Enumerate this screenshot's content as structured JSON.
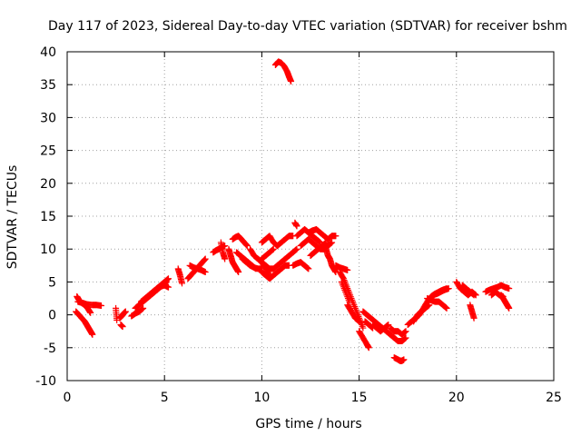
{
  "chart_data": {
    "type": "scatter",
    "title": "Day 117 of 2023, Sidereal Day-to-day VTEC variation (SDTVAR) for receiver bshm",
    "xlabel": "GPS time / hours",
    "ylabel": "SDTVAR / TECUs",
    "xlim": [
      0,
      25
    ],
    "ylim": [
      -10,
      40
    ],
    "xticks": [
      0,
      5,
      10,
      15,
      20,
      25
    ],
    "yticks": [
      -10,
      -5,
      0,
      5,
      10,
      15,
      20,
      25,
      30,
      35,
      40
    ],
    "grid": true,
    "marker": "+",
    "color": "#ff0000",
    "segments": [
      {
        "x": [
          0.45,
          0.6,
          0.75,
          0.9,
          1.0,
          1.1,
          1.2,
          1.3
        ],
        "y": [
          0.5,
          0.0,
          -0.5,
          -1.0,
          -1.5,
          -2.0,
          -2.5,
          -3.0
        ]
      },
      {
        "x": [
          0.5,
          0.6,
          0.75,
          0.9,
          1.05,
          1.2
        ],
        "y": [
          2.8,
          2.3,
          1.8,
          1.5,
          1.0,
          0.3
        ]
      },
      {
        "x": [
          0.55,
          0.8,
          1.0,
          1.3,
          1.5,
          1.75
        ],
        "y": [
          2.0,
          1.8,
          1.6,
          1.5,
          1.5,
          1.4
        ]
      },
      {
        "x": [
          2.5,
          2.55
        ],
        "y": [
          1.0,
          -0.8
        ]
      },
      {
        "x": [
          2.7,
          2.8,
          2.9,
          3.0
        ],
        "y": [
          -0.5,
          -0.2,
          0.2,
          0.5
        ]
      },
      {
        "x": [
          2.75,
          2.85
        ],
        "y": [
          -1.5,
          -1.8
        ]
      },
      {
        "x": [
          3.3,
          3.5,
          3.7,
          3.9
        ],
        "y": [
          -0.2,
          0.2,
          0.5,
          1.0
        ]
      },
      {
        "x": [
          3.5,
          3.7,
          3.9,
          4.1,
          4.3,
          4.5,
          4.7,
          4.9,
          5.1
        ],
        "y": [
          1.0,
          1.5,
          2.0,
          2.5,
          3.0,
          3.5,
          4.0,
          4.5,
          5.0
        ]
      },
      {
        "x": [
          3.8,
          4.0,
          4.2,
          4.4,
          4.6,
          4.8,
          5.0,
          5.2
        ],
        "y": [
          2.0,
          2.5,
          3.0,
          3.5,
          4.0,
          4.5,
          5.0,
          5.5
        ]
      },
      {
        "x": [
          4.2,
          4.4,
          4.6,
          4.8,
          5.0,
          5.2
        ],
        "y": [
          2.8,
          3.3,
          3.8,
          4.3,
          4.5,
          4.2
        ]
      },
      {
        "x": [
          5.7,
          5.8,
          5.9
        ],
        "y": [
          7.0,
          6.0,
          4.8
        ]
      },
      {
        "x": [
          6.2,
          6.35,
          6.5,
          6.65,
          6.8,
          6.95,
          7.1
        ],
        "y": [
          5.5,
          6.0,
          6.5,
          7.0,
          7.5,
          8.0,
          8.5
        ]
      },
      {
        "x": [
          6.3,
          6.5,
          6.7,
          6.9,
          7.1
        ],
        "y": [
          7.5,
          7.2,
          7.0,
          6.8,
          6.5
        ]
      },
      {
        "x": [
          7.5,
          7.65,
          7.8,
          7.95,
          8.1
        ],
        "y": [
          9.5,
          9.8,
          10.0,
          10.3,
          10.5
        ]
      },
      {
        "x": [
          7.9,
          8.0,
          8.1
        ],
        "y": [
          11.0,
          9.5,
          8.5
        ]
      },
      {
        "x": [
          8.3,
          8.4,
          8.5,
          8.6,
          8.7,
          8.8
        ],
        "y": [
          10.0,
          9.0,
          8.0,
          7.5,
          7.0,
          6.5
        ]
      },
      {
        "x": [
          8.5,
          8.65,
          8.8,
          8.95,
          9.1,
          9.25
        ],
        "y": [
          11.5,
          11.8,
          12.0,
          11.5,
          11.0,
          10.5
        ]
      },
      {
        "x": [
          8.7,
          8.9,
          9.1,
          9.3,
          9.5,
          9.7
        ],
        "y": [
          9.5,
          9.0,
          8.5,
          8.0,
          7.5,
          7.0
        ]
      },
      {
        "x": [
          9.0,
          9.2,
          9.4,
          9.6,
          9.8,
          10.0
        ],
        "y": [
          8.5,
          8.0,
          7.5,
          7.2,
          7.0,
          7.0
        ]
      },
      {
        "x": [
          9.4,
          9.6,
          9.8,
          10.0,
          10.2,
          10.4
        ],
        "y": [
          10.0,
          9.0,
          8.5,
          8.0,
          7.0,
          6.0
        ]
      },
      {
        "x": [
          9.8,
          10.0,
          10.2,
          10.4,
          10.6,
          10.8,
          11.0,
          11.2,
          11.4,
          11.6,
          11.8
        ],
        "y": [
          8.5,
          8.0,
          7.5,
          7.0,
          7.0,
          7.5,
          8.0,
          8.5,
          9.0,
          9.5,
          10.0
        ]
      },
      {
        "x": [
          10.0,
          10.2,
          10.4,
          10.6,
          10.8,
          11.0,
          11.2,
          11.4
        ],
        "y": [
          6.5,
          6.0,
          5.5,
          6.0,
          6.5,
          7.0,
          7.5,
          7.5
        ]
      },
      {
        "x": [
          10.0,
          10.2,
          10.4,
          10.6,
          10.8,
          11.0,
          11.2,
          11.4,
          11.6
        ],
        "y": [
          11.0,
          11.5,
          12.0,
          11.0,
          10.5,
          11.0,
          11.5,
          12.0,
          12.0
        ]
      },
      {
        "x": [
          10.0,
          10.2,
          10.4,
          10.6
        ],
        "y": [
          8.5,
          9.0,
          9.5,
          10.0
        ]
      },
      {
        "x": [
          10.7,
          10.85,
          11.0,
          11.15,
          11.3,
          11.4,
          11.5
        ],
        "y": [
          38.0,
          38.5,
          38.3,
          37.8,
          37.0,
          36.2,
          35.5
        ]
      },
      {
        "x": [
          11.6,
          11.8,
          12.0,
          12.2,
          12.4
        ],
        "y": [
          7.5,
          7.8,
          8.0,
          7.5,
          7.0
        ]
      },
      {
        "x": [
          11.7,
          11.8
        ],
        "y": [
          14.0,
          13.5
        ]
      },
      {
        "x": [
          11.8,
          12.0,
          12.2,
          12.4,
          12.6,
          12.8,
          13.0
        ],
        "y": [
          12.0,
          12.5,
          13.0,
          12.5,
          12.0,
          11.5,
          11.0
        ]
      },
      {
        "x": [
          12.0,
          12.2,
          12.4,
          12.6,
          12.8,
          13.0,
          13.2,
          13.4,
          13.6
        ],
        "y": [
          10.5,
          11.0,
          11.5,
          11.0,
          10.5,
          10.0,
          10.0,
          10.5,
          11.0
        ]
      },
      {
        "x": [
          12.4,
          12.6,
          12.8,
          13.0,
          13.2,
          13.4,
          13.6,
          13.8
        ],
        "y": [
          12.5,
          12.8,
          13.0,
          12.5,
          12.0,
          11.5,
          12.0,
          12.0
        ]
      },
      {
        "x": [
          12.5,
          12.7,
          12.9,
          13.1,
          13.3
        ],
        "y": [
          9.0,
          9.5,
          10.0,
          10.5,
          11.0
        ]
      },
      {
        "x": [
          13.3,
          13.4,
          13.5,
          13.6,
          13.7,
          13.8
        ],
        "y": [
          10.0,
          9.0,
          8.5,
          7.5,
          7.0,
          6.5
        ]
      },
      {
        "x": [
          13.8,
          14.0,
          14.2,
          14.4
        ],
        "y": [
          7.5,
          7.2,
          7.0,
          6.8
        ]
      },
      {
        "x": [
          14.0,
          14.2,
          14.4,
          14.6,
          14.8,
          15.0,
          15.2
        ],
        "y": [
          6.5,
          5.5,
          4.0,
          2.5,
          1.0,
          -0.5,
          -2.0
        ]
      },
      {
        "x": [
          14.1,
          14.3,
          14.5
        ],
        "y": [
          5.0,
          3.5,
          2.0
        ]
      },
      {
        "x": [
          14.4,
          14.6,
          14.8,
          15.0
        ],
        "y": [
          1.5,
          0.5,
          -0.5,
          -1.0
        ]
      },
      {
        "x": [
          15.0,
          15.2,
          15.4,
          15.5
        ],
        "y": [
          -2.5,
          -3.5,
          -4.5,
          -5.0
        ]
      },
      {
        "x": [
          15.2,
          15.4,
          15.6,
          15.8,
          16.0,
          16.2
        ],
        "y": [
          0.5,
          0.0,
          -0.5,
          -1.0,
          -1.5,
          -2.0
        ]
      },
      {
        "x": [
          15.3,
          15.5,
          15.7
        ],
        "y": [
          -1.0,
          -1.5,
          -2.0
        ]
      },
      {
        "x": [
          15.7,
          15.9,
          16.1,
          16.3,
          16.5
        ],
        "y": [
          -1.5,
          -2.0,
          -2.5,
          -2.0,
          -1.5
        ]
      },
      {
        "x": [
          16.2,
          16.4,
          16.6,
          16.8,
          17.0,
          17.2,
          17.4
        ],
        "y": [
          -2.0,
          -2.5,
          -3.0,
          -3.5,
          -4.0,
          -4.0,
          -3.5
        ]
      },
      {
        "x": [
          16.6,
          16.8,
          17.0,
          17.2,
          17.4
        ],
        "y": [
          -2.0,
          -2.5,
          -2.5,
          -3.0,
          -2.5
        ]
      },
      {
        "x": [
          16.8,
          17.0,
          17.1,
          17.2,
          17.3
        ],
        "y": [
          -6.5,
          -6.8,
          -7.0,
          -7.0,
          -6.8
        ]
      },
      {
        "x": [
          17.5,
          17.7,
          17.9,
          18.1,
          18.3,
          18.5,
          18.7,
          18.9,
          19.1,
          19.3,
          19.5
        ],
        "y": [
          -1.5,
          -1.0,
          -0.5,
          0.0,
          1.0,
          2.0,
          2.8,
          3.2,
          3.5,
          3.8,
          4.0
        ]
      },
      {
        "x": [
          17.8,
          18.0,
          18.2,
          18.4,
          18.6
        ],
        "y": [
          -1.0,
          0.0,
          0.5,
          1.0,
          1.5
        ]
      },
      {
        "x": [
          18.5,
          18.7,
          18.9,
          19.1,
          19.3,
          19.5
        ],
        "y": [
          2.5,
          2.2,
          2.0,
          2.0,
          1.5,
          1.0
        ]
      },
      {
        "x": [
          18.8,
          19.0,
          19.2,
          19.4,
          19.6
        ],
        "y": [
          3.0,
          3.2,
          3.5,
          3.8,
          4.0
        ]
      },
      {
        "x": [
          20.0,
          20.2,
          20.4,
          20.6,
          20.8,
          21.0
        ],
        "y": [
          5.0,
          4.0,
          3.5,
          3.0,
          3.5,
          3.0
        ]
      },
      {
        "x": [
          20.3,
          20.5,
          20.7,
          20.9
        ],
        "y": [
          4.5,
          4.0,
          3.5,
          3.0
        ]
      },
      {
        "x": [
          20.7,
          20.8,
          20.9
        ],
        "y": [
          1.5,
          0.5,
          -0.5
        ]
      },
      {
        "x": [
          21.5,
          21.7,
          21.9,
          22.1,
          22.3,
          22.5,
          22.7
        ],
        "y": [
          3.5,
          3.8,
          4.0,
          4.2,
          4.5,
          4.2,
          4.0
        ]
      },
      {
        "x": [
          21.8,
          22.0,
          22.2,
          22.4
        ],
        "y": [
          3.0,
          3.5,
          3.0,
          2.8
        ]
      },
      {
        "x": [
          22.3,
          22.4,
          22.5,
          22.6,
          22.7
        ],
        "y": [
          3.0,
          2.5,
          2.0,
          1.5,
          1.0
        ]
      }
    ]
  }
}
